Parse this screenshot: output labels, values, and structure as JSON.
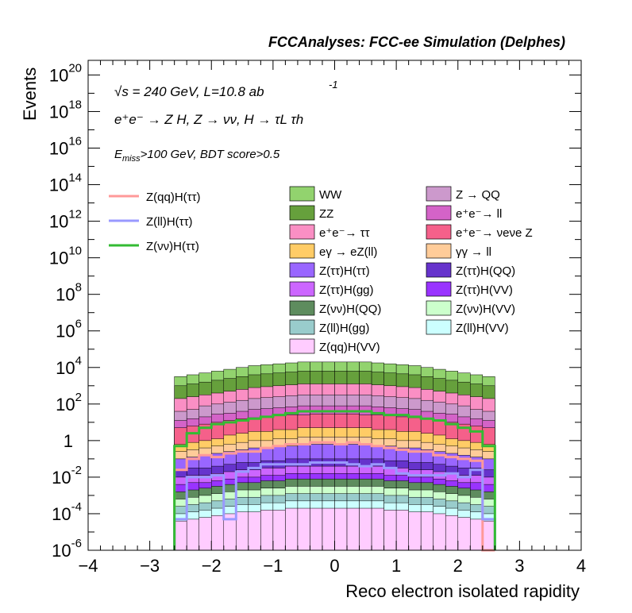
{
  "chart_data": {
    "type": "area",
    "title": "FCCAnalyses: FCC-ee Simulation (Delphes)",
    "xlabel": "Reco electron isolated rapidity",
    "ylabel": "Events",
    "xlim": [
      -4,
      4
    ],
    "ylim_log10": [
      -6,
      20.8
    ],
    "log_y": true,
    "x_ticks": [
      "−4",
      "−3",
      "−2",
      "−1",
      "0",
      "1",
      "2",
      "3",
      "4"
    ],
    "y_ticks": [
      {
        "base": "10",
        "exp": "20"
      },
      {
        "base": "10",
        "exp": "18"
      },
      {
        "base": "10",
        "exp": "16"
      },
      {
        "base": "10",
        "exp": "14"
      },
      {
        "base": "10",
        "exp": "12"
      },
      {
        "base": "10",
        "exp": "10"
      },
      {
        "base": "10",
        "exp": "8"
      },
      {
        "base": "10",
        "exp": "6"
      },
      {
        "base": "10",
        "exp": "4"
      },
      {
        "base": "10",
        "exp": "2"
      },
      {
        "base": "1",
        "exp": ""
      },
      {
        "base": "10",
        "exp": "-2"
      },
      {
        "base": "10",
        "exp": "-4"
      },
      {
        "base": "10",
        "exp": "-6"
      }
    ],
    "annotations": {
      "energy": "√s = 240 GeV, L=10.8 ab",
      "lumi_exp": "-1",
      "process": "e⁺e⁻ → Z H, Z → νν, H → τL τh",
      "cut_prefix": "E",
      "cut_sub": "miss",
      "cut_rest": ">100 GeV, BDT score>0.5"
    },
    "bins": {
      "xmin": -2.6,
      "xmax": 2.6,
      "count": 26
    },
    "stacked_total_log10": [
      3.5,
      3.6,
      3.7,
      3.8,
      3.9,
      4.0,
      4.1,
      4.15,
      4.2,
      4.25,
      4.3,
      4.3,
      4.3,
      4.3,
      4.3,
      4.3,
      4.25,
      4.2,
      4.15,
      4.1,
      4.0,
      3.9,
      3.8,
      3.7,
      3.6,
      3.5
    ],
    "backgrounds": [
      {
        "name": "WW",
        "color": "#92d36e",
        "log10": [
          3.5,
          3.6,
          3.7,
          3.8,
          3.9,
          4.0,
          4.1,
          4.15,
          4.2,
          4.25,
          4.3,
          4.3,
          4.3,
          4.3,
          4.3,
          4.3,
          4.25,
          4.2,
          4.15,
          4.1,
          4.0,
          3.9,
          3.8,
          3.7,
          3.6,
          3.5
        ]
      },
      {
        "name": "ZZ",
        "color": "#66a03c",
        "log10": [
          3.0,
          3.1,
          3.2,
          3.3,
          3.4,
          3.5,
          3.6,
          3.65,
          3.7,
          3.75,
          3.8,
          3.8,
          3.8,
          3.8,
          3.8,
          3.8,
          3.75,
          3.7,
          3.65,
          3.6,
          3.5,
          3.4,
          3.3,
          3.2,
          3.1,
          3.0
        ]
      },
      {
        "name": "e⁺e⁻→ ττ",
        "color": "#fa8fc4",
        "log10": [
          2.3,
          2.4,
          2.5,
          2.6,
          2.7,
          2.8,
          2.9,
          2.95,
          3.0,
          3.05,
          3.1,
          3.1,
          3.1,
          3.1,
          3.1,
          3.1,
          3.05,
          3.0,
          2.95,
          2.9,
          2.8,
          2.7,
          2.6,
          2.5,
          2.4,
          2.3
        ]
      },
      {
        "name": "Z → QQ",
        "color": "#cc99cc",
        "log10": [
          1.6,
          1.7,
          1.9,
          2.0,
          2.1,
          2.2,
          2.3,
          2.35,
          2.4,
          2.45,
          2.5,
          2.5,
          2.5,
          2.5,
          2.5,
          2.5,
          2.45,
          2.4,
          2.35,
          2.3,
          2.2,
          2.1,
          2.0,
          1.9,
          1.7,
          1.6
        ]
      },
      {
        "name": "e⁺e⁻→ ll",
        "color": "#d463c8",
        "log10": [
          1.1,
          1.2,
          1.3,
          1.45,
          1.5,
          1.6,
          1.7,
          1.75,
          1.8,
          1.85,
          1.9,
          1.9,
          1.9,
          1.9,
          1.9,
          1.9,
          1.85,
          1.8,
          1.75,
          1.7,
          1.6,
          1.5,
          1.45,
          1.3,
          1.2,
          1.1
        ]
      },
      {
        "name": "e⁺e⁻→ νeνe Z",
        "color": "#f5608a",
        "log10": [
          0.7,
          0.8,
          0.9,
          1.0,
          1.1,
          1.2,
          1.25,
          1.3,
          1.35,
          1.4,
          1.4,
          1.45,
          1.45,
          1.45,
          1.45,
          1.4,
          1.4,
          1.35,
          1.3,
          1.25,
          1.2,
          1.1,
          1.0,
          0.9,
          0.8,
          0.7
        ]
      },
      {
        "name": "eγ → eZ(ll)",
        "color": "#ffcc66",
        "log10": [
          -0.2,
          -0.1,
          0.0,
          0.1,
          0.3,
          0.4,
          0.5,
          0.5,
          0.6,
          0.6,
          0.7,
          0.7,
          0.7,
          0.7,
          0.7,
          0.7,
          0.6,
          0.6,
          0.5,
          0.5,
          0.4,
          0.3,
          0.1,
          0.0,
          -0.1,
          -0.2
        ]
      },
      {
        "name": "γγ → ll",
        "color": "#ffcc99",
        "log10": [
          -0.6,
          -0.5,
          -0.4,
          -0.3,
          -0.2,
          -0.1,
          0.0,
          0.0,
          0.1,
          0.1,
          0.2,
          0.2,
          0.2,
          0.2,
          0.2,
          0.2,
          0.1,
          0.1,
          0.0,
          0.0,
          -0.1,
          -0.2,
          -0.3,
          -0.4,
          -0.5,
          -0.6
        ]
      },
      {
        "name": "Z(ττ)H(ττ)",
        "color": "#9966ff",
        "log10": [
          -1.0,
          -0.9,
          -0.8,
          -0.7,
          -0.6,
          -0.5,
          -0.4,
          -0.4,
          -0.3,
          -0.3,
          -0.2,
          -0.2,
          -0.2,
          -0.2,
          -0.2,
          -0.2,
          -0.3,
          -0.3,
          -0.4,
          -0.4,
          -0.5,
          -0.6,
          -0.7,
          -0.8,
          -0.9,
          -1.0
        ]
      },
      {
        "name": "Z(ττ)H(QQ)",
        "color": "#6633cc",
        "log10": [
          -1.6,
          -1.5,
          -1.5,
          -1.4,
          -1.3,
          -1.2,
          -1.2,
          -1.1,
          -1.1,
          -1.0,
          -1.0,
          -1.0,
          -1.0,
          -1.0,
          -1.0,
          -1.0,
          -1.0,
          -1.1,
          -1.1,
          -1.2,
          -1.2,
          -1.3,
          -1.4,
          -1.5,
          -1.5,
          -1.6
        ]
      },
      {
        "name": "Z(ττ)H(gg)",
        "color": "#cc66ff",
        "log10": [
          -2.0,
          -1.9,
          -1.9,
          -1.8,
          -1.7,
          -1.6,
          -1.6,
          -1.5,
          -1.5,
          -1.4,
          -1.4,
          -1.4,
          -1.4,
          -1.4,
          -1.4,
          -1.4,
          -1.4,
          -1.5,
          -1.5,
          -1.6,
          -1.6,
          -1.7,
          -1.8,
          -1.9,
          -1.9,
          -2.0
        ]
      },
      {
        "name": "Z(ττ)H(VV)",
        "color": "#9933ff",
        "log10": [
          -2.4,
          -2.3,
          -2.3,
          -2.2,
          -2.1,
          -2.0,
          -2.0,
          -1.9,
          -1.9,
          -1.8,
          -1.8,
          -1.8,
          -1.8,
          -1.8,
          -1.8,
          -1.8,
          -1.8,
          -1.9,
          -1.9,
          -2.0,
          -2.0,
          -2.1,
          -2.2,
          -2.3,
          -2.3,
          -2.4
        ]
      },
      {
        "name": "Z(νν)H(QQ)",
        "color": "#5e8c5e",
        "log10": [
          -2.8,
          -2.7,
          -2.6,
          -2.5,
          -2.4,
          -2.3,
          -2.3,
          -2.2,
          -2.2,
          -2.1,
          -2.1,
          -2.1,
          -2.1,
          -2.1,
          -2.1,
          -2.1,
          -2.1,
          -2.2,
          -2.2,
          -2.3,
          -2.3,
          -2.4,
          -2.5,
          -2.6,
          -2.7,
          -2.8
        ]
      },
      {
        "name": "Z(νν)H(VV)",
        "color": "#ccffcc",
        "log10": [
          -3.2,
          -3.1,
          -3.0,
          -2.9,
          -2.8,
          -2.7,
          -2.7,
          -2.6,
          -2.6,
          -2.5,
          -2.5,
          -2.5,
          -2.5,
          -2.5,
          -2.5,
          -2.5,
          -2.5,
          -2.6,
          -2.6,
          -2.7,
          -2.7,
          -2.8,
          -2.9,
          -3.0,
          -3.1,
          -3.2
        ]
      },
      {
        "name": "Z(ll)H(gg)",
        "color": "#99cccc",
        "log10": [
          -3.6,
          -3.5,
          -3.4,
          -3.3,
          -3.2,
          -3.1,
          -3.1,
          -3.0,
          -3.0,
          -2.9,
          -2.9,
          -2.9,
          -2.9,
          -2.9,
          -2.9,
          -2.9,
          -2.9,
          -3.0,
          -3.0,
          -3.1,
          -3.1,
          -3.2,
          -3.3,
          -3.4,
          -3.5,
          -3.6
        ]
      },
      {
        "name": "Z(ll)H(VV)",
        "color": "#ccffff",
        "log10": [
          -4.0,
          -3.9,
          -3.8,
          -3.7,
          -3.6,
          -3.5,
          -3.5,
          -3.4,
          -3.4,
          -3.3,
          -3.3,
          -3.3,
          -3.3,
          -3.3,
          -3.3,
          -3.3,
          -3.3,
          -3.4,
          -3.4,
          -3.5,
          -3.5,
          -3.6,
          -3.7,
          -3.8,
          -3.9,
          -4.0
        ]
      },
      {
        "name": "Z(qq)H(VV)",
        "color": "#ffccff",
        "log10": [
          -4.4,
          -4.3,
          -4.2,
          -4.1,
          -4.0,
          -3.9,
          -3.9,
          -3.8,
          -3.8,
          -3.7,
          -3.7,
          -3.7,
          -3.7,
          -3.7,
          -3.7,
          -3.7,
          -3.7,
          -3.8,
          -3.8,
          -3.9,
          -3.9,
          -4.0,
          -4.1,
          -4.2,
          -4.3,
          -4.4
        ]
      }
    ],
    "signals": [
      {
        "name": "Z(qq)H(ττ)",
        "color": "#ff9999",
        "log10": [
          -1.6,
          -1.0,
          -0.8,
          -0.9,
          -0.7,
          -0.6,
          -0.6,
          -0.4,
          -0.3,
          -0.2,
          -0.2,
          -0.1,
          -0.1,
          -0.2,
          -0.1,
          -0.2,
          -0.3,
          -0.4,
          -0.5,
          -0.6,
          -0.6,
          -0.8,
          -0.9,
          -1.0,
          -1.1,
          -6.0
        ]
      },
      {
        "name": "Z(ll)H(ττ)",
        "color": "#9999ff",
        "log10": [
          -4.3,
          -2.0,
          -2.0,
          -1.9,
          -4.3,
          -1.7,
          -1.5,
          -1.3,
          -1.3,
          -1.3,
          -1.3,
          -1.2,
          -1.2,
          -1.2,
          -1.3,
          -1.4,
          -1.3,
          -1.5,
          -1.8,
          -1.9,
          -1.9,
          -1.9,
          -1.8,
          -2.0,
          -1.6,
          -4.3
        ]
      },
      {
        "name": "Z(νν)H(ττ)",
        "color": "#33bb33",
        "log10": [
          -0.3,
          0.4,
          0.7,
          0.9,
          1.0,
          1.1,
          1.2,
          1.3,
          1.4,
          1.5,
          1.6,
          1.6,
          1.6,
          1.6,
          1.6,
          1.6,
          1.5,
          1.4,
          1.4,
          1.3,
          1.2,
          1.1,
          0.9,
          0.7,
          0.5,
          -0.3
        ]
      }
    ],
    "legend": {
      "signals_left": [
        "Z(qq)H(ττ)",
        "Z(ll)H(ττ)",
        "Z(νν)H(ττ)"
      ],
      "bkg_col1": [
        "WW",
        "ZZ",
        "e⁺e⁻→ ττ",
        "eγ → eZ(ll)",
        "Z(ττ)H(ττ)",
        "Z(ττ)H(gg)",
        "Z(νν)H(QQ)",
        "Z(ll)H(gg)",
        "Z(qq)H(VV)"
      ],
      "bkg_col2": [
        "Z → QQ",
        "e⁺e⁻→ ll",
        "e⁺e⁻→ νeνe Z",
        "γγ → ll",
        "Z(ττ)H(QQ)",
        "Z(ττ)H(VV)",
        "Z(νν)H(VV)",
        "Z(ll)H(VV)"
      ]
    }
  }
}
